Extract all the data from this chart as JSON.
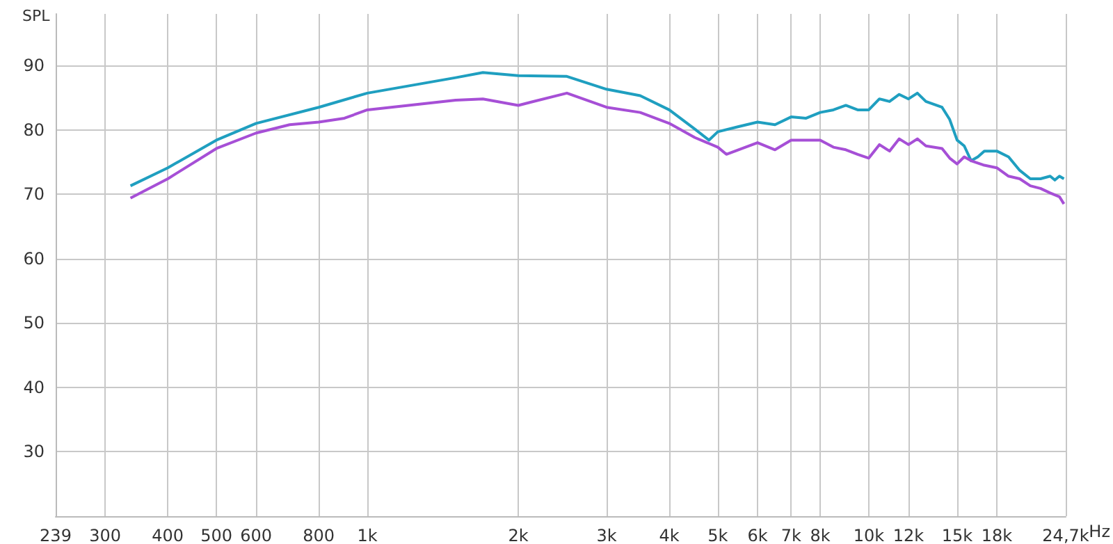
{
  "chart_data": {
    "type": "line",
    "ylabel": "SPL",
    "log": "x",
    "grid": true,
    "line_style": "solid",
    "marker": "none",
    "xlim": [
      239,
      24700
    ],
    "ylim": [
      20,
      98
    ],
    "xticks": [
      239,
      300,
      400,
      500,
      600,
      800,
      {
        "value": 1000,
        "label": "1k"
      },
      {
        "value": 2000,
        "label": "2k"
      },
      {
        "value": 3000,
        "label": "3k"
      },
      {
        "value": 4000,
        "label": "4k"
      },
      {
        "value": 5000,
        "label": "5k"
      },
      {
        "value": 6000,
        "label": "6k"
      },
      {
        "value": 7000,
        "label": "7k"
      },
      {
        "value": 8000,
        "label": "8k"
      },
      {
        "value": 10000,
        "label": "10k"
      },
      {
        "value": 12000,
        "label": "12k"
      },
      {
        "value": 15000,
        "label": "15k"
      },
      {
        "value": 18000,
        "label": "18k"
      },
      {
        "value": 24700,
        "label": "24,7k"
      }
    ],
    "xlabel": "Hz",
    "yticks": [
      30,
      40,
      50,
      60,
      70,
      80,
      90
    ],
    "series": [
      {
        "color": "#1f9fc0",
        "x": [
          337,
          400,
          500,
          600,
          800,
          1000,
          1500,
          1700,
          2000,
          2500,
          3000,
          3500,
          4000,
          4500,
          4800,
          5000,
          5500,
          6000,
          6500,
          7000,
          7500,
          8000,
          8500,
          9000,
          9500,
          10000,
          10500,
          11000,
          11500,
          12000,
          12500,
          13000,
          14000,
          14500,
          15000,
          15500,
          16000,
          16500,
          17000,
          18000,
          19000,
          20000,
          21000,
          22000,
          23000,
          23500,
          24000,
          24500
        ],
        "values": [
          71.3,
          74.1,
          78.4,
          81,
          83.5,
          85.7,
          88.1,
          88.9,
          88.4,
          88.3,
          86.3,
          85.3,
          83.1,
          80.1,
          78.4,
          79.7,
          80.5,
          81.2,
          80.8,
          82,
          81.8,
          82.7,
          83.1,
          83.8,
          83.1,
          83.1,
          84.8,
          84.4,
          85.5,
          84.8,
          85.7,
          84.4,
          83.5,
          81.6,
          78.4,
          77.5,
          75.2,
          75.8,
          76.7,
          76.7,
          75.8,
          73.7,
          72.4,
          72.4,
          72.8,
          72.2,
          72.8,
          72.4
        ]
      },
      {
        "color": "#a64fd6",
        "x": [
          337,
          400,
          500,
          600,
          700,
          800,
          900,
          1000,
          1500,
          1700,
          2000,
          2500,
          3000,
          3500,
          4000,
          4500,
          5000,
          5200,
          6000,
          6500,
          7000,
          8000,
          8500,
          9000,
          9500,
          10000,
          10500,
          11000,
          11500,
          12000,
          12500,
          13000,
          14000,
          14500,
          15000,
          15500,
          16000,
          17000,
          18000,
          19000,
          20000,
          21000,
          22000,
          23000,
          24000,
          24500
        ],
        "values": [
          69.4,
          72.4,
          77.1,
          79.5,
          80.8,
          81.2,
          81.8,
          83.1,
          84.6,
          84.8,
          83.8,
          85.7,
          83.5,
          82.7,
          81,
          78.8,
          77.3,
          76.2,
          78,
          76.9,
          78.4,
          78.4,
          77.3,
          76.9,
          76.2,
          75.6,
          77.7,
          76.7,
          78.6,
          77.7,
          78.6,
          77.5,
          77.1,
          75.6,
          74.7,
          75.8,
          75.2,
          74.5,
          74.1,
          72.8,
          72.4,
          71.3,
          70.9,
          70.2,
          69.6,
          68.5
        ]
      }
    ]
  }
}
